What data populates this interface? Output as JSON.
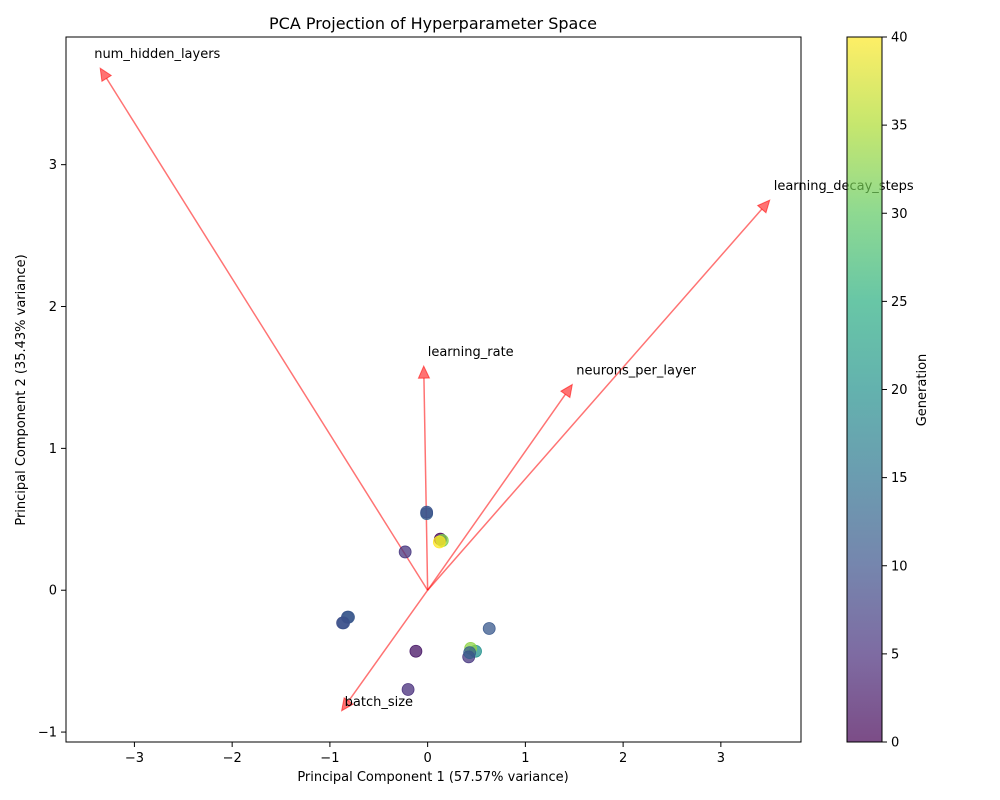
{
  "chart_data": {
    "type": "scatter",
    "title": "PCA Projection of Hyperparameter Space",
    "xlabel": "Principal Component 1 (57.57% variance)",
    "ylabel": "Principal Component 2 (35.43% variance)",
    "xlim": [
      -3.7,
      3.82
    ],
    "ylim": [
      -1.07,
      3.9
    ],
    "xticks": [
      -3,
      -2,
      -1,
      0,
      1,
      2,
      3
    ],
    "yticks": [
      -1,
      0,
      1,
      2,
      3
    ],
    "grid": false,
    "colorbar": {
      "label": "Generation",
      "min": 0,
      "max": 40,
      "ticks": [
        0,
        5,
        10,
        15,
        20,
        25,
        30,
        35,
        40
      ],
      "colormap": "viridis"
    },
    "loadings": [
      {
        "name": "num_hidden_layers",
        "x": -3.35,
        "y": 3.68
      },
      {
        "name": "learning_decay_steps",
        "x": 3.5,
        "y": 2.75
      },
      {
        "name": "learning_rate",
        "x": -0.04,
        "y": 1.58
      },
      {
        "name": "neurons_per_layer",
        "x": 1.48,
        "y": 1.45
      },
      {
        "name": "batch_size",
        "x": -0.88,
        "y": -0.85
      }
    ],
    "points": [
      {
        "x": -0.01,
        "y": 0.54,
        "g": 12
      },
      {
        "x": -0.01,
        "y": 0.55,
        "g": 10
      },
      {
        "x": 0.13,
        "y": 0.36,
        "g": 0
      },
      {
        "x": 0.15,
        "y": 0.35,
        "g": 32
      },
      {
        "x": 0.12,
        "y": 0.34,
        "g": 40
      },
      {
        "x": -0.23,
        "y": 0.27,
        "g": 6
      },
      {
        "x": -0.82,
        "y": -0.19,
        "g": 10
      },
      {
        "x": -0.81,
        "y": -0.19,
        "g": 11
      },
      {
        "x": -0.87,
        "y": -0.23,
        "g": 9
      },
      {
        "x": -0.86,
        "y": -0.23,
        "g": 10
      },
      {
        "x": 0.63,
        "y": -0.27,
        "g": 11
      },
      {
        "x": -0.12,
        "y": -0.43,
        "g": 2
      },
      {
        "x": 0.49,
        "y": -0.43,
        "g": 20
      },
      {
        "x": 0.44,
        "y": -0.41,
        "g": 33
      },
      {
        "x": 0.42,
        "y": -0.47,
        "g": 6
      },
      {
        "x": 0.43,
        "y": -0.44,
        "g": 12
      },
      {
        "x": -0.2,
        "y": -0.7,
        "g": 5
      }
    ]
  }
}
